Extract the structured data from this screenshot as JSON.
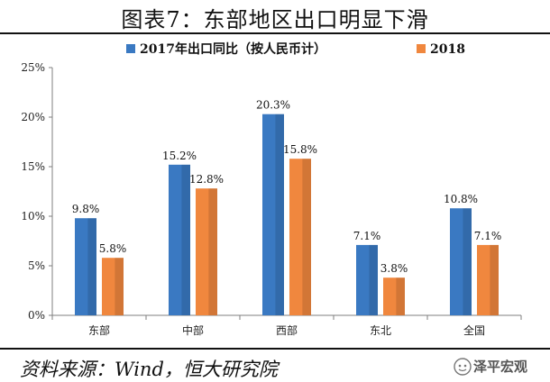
{
  "title": "图表7：东部地区出口明显下滑",
  "source": "资料来源：Wind，恒大研究院",
  "watermark": "泽平宏观",
  "colors": {
    "series1": "#3A79C2",
    "series2": "#F0873E",
    "axis": "#7f7f7f"
  },
  "chart_data": {
    "type": "bar",
    "categories": [
      "东部",
      "中部",
      "西部",
      "东北",
      "全国"
    ],
    "series": [
      {
        "name": "2017年出口同比（按人民币计）",
        "values": [
          9.8,
          15.2,
          20.3,
          7.1,
          10.8
        ],
        "labels": [
          "9.8%",
          "15.2%",
          "20.3%",
          "7.1%",
          "10.8%"
        ]
      },
      {
        "name": "2018",
        "values": [
          5.8,
          12.8,
          15.8,
          3.8,
          7.1
        ],
        "labels": [
          "5.8%",
          "12.8%",
          "15.8%",
          "3.8%",
          "7.1%"
        ]
      }
    ],
    "yticks": [
      0,
      5,
      10,
      15,
      20,
      25
    ],
    "ytick_labels": [
      "0%",
      "5%",
      "10%",
      "15%",
      "20%",
      "25%"
    ],
    "ylim": [
      0,
      25
    ],
    "grid": false,
    "legend_position": "top"
  }
}
